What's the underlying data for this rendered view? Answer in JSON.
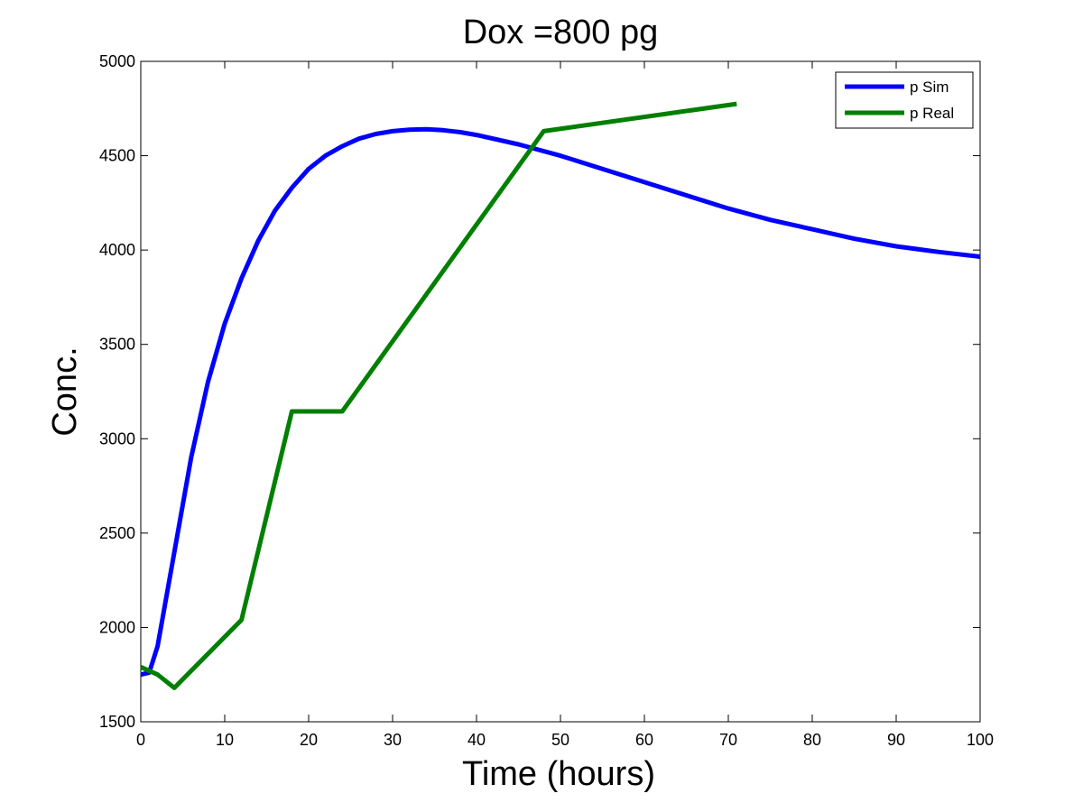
{
  "chart_data": {
    "type": "line",
    "title": "Dox =800 pg",
    "xlabel": "Time (hours)",
    "ylabel": "Conc.",
    "xlim": [
      0,
      100
    ],
    "ylim": [
      1500,
      5000
    ],
    "xticks": [
      0,
      10,
      20,
      30,
      40,
      50,
      60,
      70,
      80,
      90,
      100
    ],
    "yticks": [
      1500,
      2000,
      2500,
      3000,
      3500,
      4000,
      4500,
      5000
    ],
    "grid": false,
    "legend_position": "top-right",
    "series": [
      {
        "name": "p Sim",
        "color": "#0000ff",
        "x": [
          0,
          1,
          2,
          3,
          4,
          5,
          6,
          8,
          10,
          12,
          14,
          16,
          18,
          20,
          22,
          24,
          26,
          28,
          30,
          32,
          34,
          36,
          38,
          40,
          45,
          50,
          55,
          60,
          65,
          70,
          75,
          80,
          85,
          90,
          95,
          100
        ],
        "y": [
          1750,
          1760,
          1900,
          2150,
          2400,
          2650,
          2900,
          3300,
          3610,
          3850,
          4050,
          4210,
          4330,
          4430,
          4500,
          4550,
          4590,
          4615,
          4630,
          4638,
          4640,
          4635,
          4625,
          4610,
          4560,
          4500,
          4430,
          4360,
          4290,
          4220,
          4160,
          4110,
          4060,
          4020,
          3990,
          3965
        ]
      },
      {
        "name": "p Real",
        "color": "#007f00",
        "x": [
          0,
          2,
          4,
          12,
          18,
          24,
          48,
          71
        ],
        "y": [
          1790,
          1750,
          1680,
          2040,
          3145,
          3145,
          4630,
          4775
        ]
      }
    ]
  }
}
